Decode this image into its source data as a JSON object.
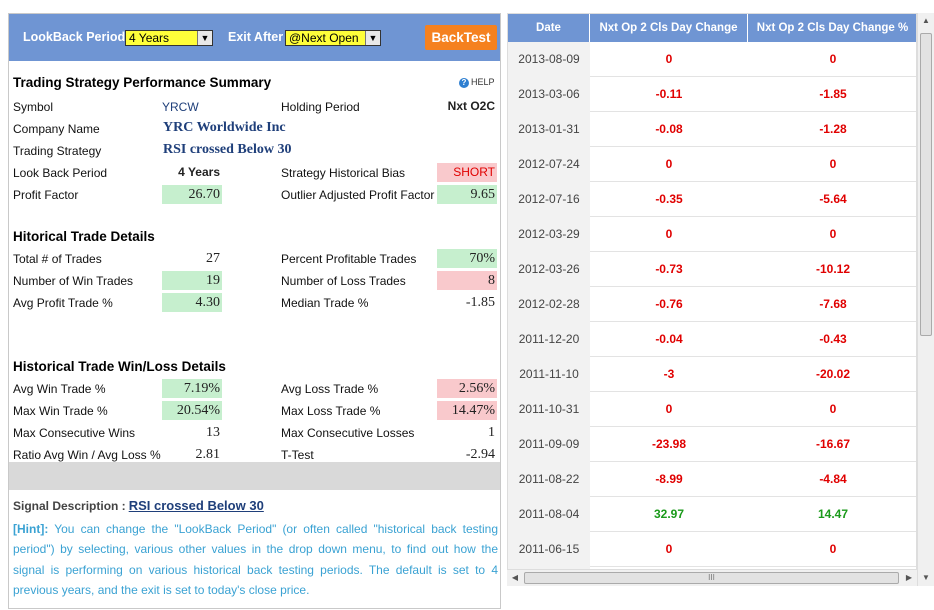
{
  "toolbar": {
    "lookback_label": "LookBack Period",
    "lookback_value": "4 Years",
    "exit_label": "Exit After",
    "exit_value": "@Next Open",
    "backtest_label": "BackTest"
  },
  "summary": {
    "title": "Trading Strategy Performance Summary",
    "help": "HELP",
    "symbol_label": "Symbol",
    "symbol": "YRCW",
    "holding_label": "Holding Period",
    "holding": "Nxt O2C",
    "company_label": "Company Name",
    "company": "YRC Worldwide Inc",
    "strategy_label": "Trading Strategy",
    "strategy": "RSI crossed Below 30",
    "lookback_label": "Look Back Period",
    "lookback": "4 Years",
    "bias_label": "Strategy Historical Bias",
    "bias": "SHORT",
    "pf_label": "Profit Factor",
    "pf": "26.70",
    "oapf_label": "Outlier Adjusted Profit Factor",
    "oapf": "9.65"
  },
  "trades": {
    "title": "Hitorical Trade Details",
    "total_label": "Total # of Trades",
    "total": "27",
    "pct_label": "Percent Profitable Trades",
    "pct": "70%",
    "wins_label": "Number of Win Trades",
    "wins": "19",
    "losses_label": "Number of Loss Trades",
    "losses": "8",
    "avg_label": "Avg Profit Trade %",
    "avg": "4.30",
    "median_label": "Median Trade %",
    "median": "-1.85"
  },
  "winloss": {
    "title": "Historical Trade Win/Loss Details",
    "avgwin_label": "Avg Win Trade %",
    "avgwin": "7.19%",
    "avgloss_label": "Avg Loss Trade %",
    "avgloss": "2.56%",
    "maxwin_label": "Max Win Trade %",
    "maxwin": "20.54%",
    "maxloss_label": "Max Loss Trade %",
    "maxloss": "14.47%",
    "cwins_label": "Max Consecutive Wins",
    "cwins": "13",
    "closses_label": "Max Consecutive Losses",
    "closses": "1",
    "ratio_label": "Ratio Avg Win / Avg Loss %",
    "ratio": "2.81",
    "ttest_label": "T-Test",
    "ttest": "-2.94"
  },
  "signal": {
    "label": "Signal Description :",
    "link": "RSI crossed Below 30"
  },
  "hint": {
    "tag": "[Hint]:",
    "text": "You can change the \"LookBack Period\" (or often called \"historical back testing period\") by selecting, various other values in the drop down menu, to find out how the signal is performing on various historical back testing periods. The default is set to 4 previous years, and the exit is set to today's close price."
  },
  "table": {
    "headers": [
      "Date",
      "Nxt Op 2 Cls Day Change",
      "Nxt Op 2 Cls Day Change %"
    ],
    "rows": [
      {
        "date": "2013-08-09",
        "chg": "0",
        "pct": "0",
        "s": "neg"
      },
      {
        "date": "2013-03-06",
        "chg": "-0.11",
        "pct": "-1.85",
        "s": "neg"
      },
      {
        "date": "2013-01-31",
        "chg": "-0.08",
        "pct": "-1.28",
        "s": "neg"
      },
      {
        "date": "2012-07-24",
        "chg": "0",
        "pct": "0",
        "s": "neg"
      },
      {
        "date": "2012-07-16",
        "chg": "-0.35",
        "pct": "-5.64",
        "s": "neg"
      },
      {
        "date": "2012-03-29",
        "chg": "0",
        "pct": "0",
        "s": "neg"
      },
      {
        "date": "2012-03-26",
        "chg": "-0.73",
        "pct": "-10.12",
        "s": "neg"
      },
      {
        "date": "2012-02-28",
        "chg": "-0.76",
        "pct": "-7.68",
        "s": "neg"
      },
      {
        "date": "2011-12-20",
        "chg": "-0.04",
        "pct": "-0.43",
        "s": "neg"
      },
      {
        "date": "2011-11-10",
        "chg": "-3",
        "pct": "-20.02",
        "s": "neg"
      },
      {
        "date": "2011-10-31",
        "chg": "0",
        "pct": "0",
        "s": "neg"
      },
      {
        "date": "2011-09-09",
        "chg": "-23.98",
        "pct": "-16.67",
        "s": "neg"
      },
      {
        "date": "2011-08-22",
        "chg": "-8.99",
        "pct": "-4.84",
        "s": "neg"
      },
      {
        "date": "2011-08-04",
        "chg": "32.97",
        "pct": "14.47",
        "s": "pos"
      },
      {
        "date": "2011-06-15",
        "chg": "0",
        "pct": "0",
        "s": "neg"
      },
      {
        "date": "",
        "chg": "",
        "pct": "",
        "s": "neg"
      }
    ]
  },
  "icons": {
    "dropdown": "chevron-down-icon",
    "help": "help-icon"
  },
  "colors": {
    "header": "#6f95d3",
    "accent": "#f5811f",
    "positive": "#c6efce",
    "negative": "#f9c9cc"
  }
}
